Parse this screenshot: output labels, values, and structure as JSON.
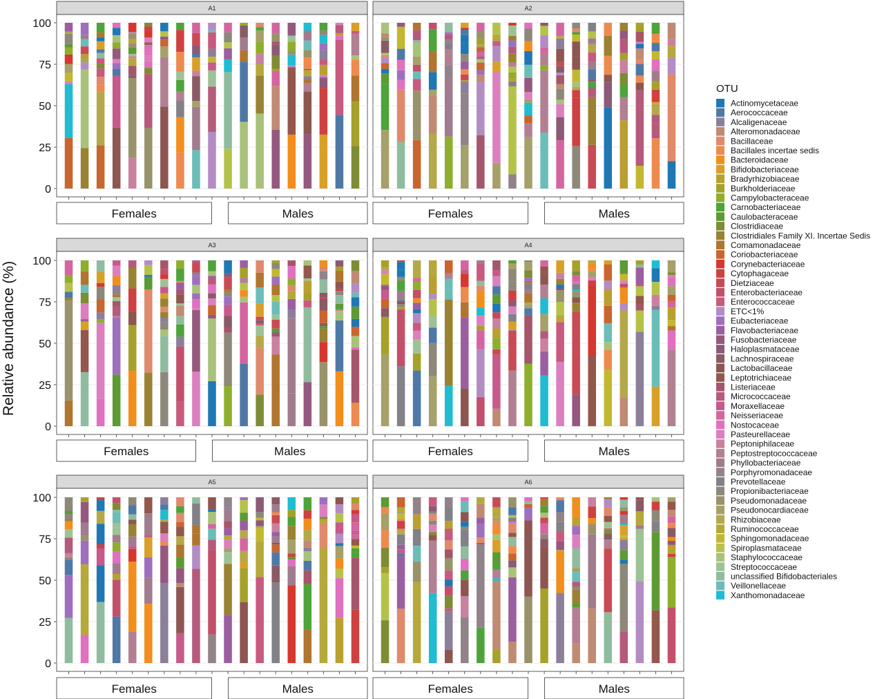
{
  "chart_data": {
    "type": "bar",
    "stacked": true,
    "ylabel": "Relative abundance (%)",
    "ylim": [
      0,
      100
    ],
    "yticks": [
      0,
      25,
      50,
      75,
      100
    ],
    "grid": true,
    "legend": {
      "title": "OTU",
      "placement": "right"
    },
    "group_labels": [
      "Females",
      "Males"
    ],
    "facets": [
      {
        "label": "A1",
        "n_bars": 19,
        "group_split": 10
      },
      {
        "label": "A2",
        "n_bars": 19,
        "group_split": 10
      },
      {
        "label": "A3",
        "n_bars": 19,
        "group_split": 9
      },
      {
        "label": "A4",
        "n_bars": 19,
        "group_split": 10
      },
      {
        "label": "A5",
        "n_bars": 19,
        "group_split": 10
      },
      {
        "label": "A6",
        "n_bars": 19,
        "group_split": 10
      }
    ],
    "otus": [
      {
        "name": "Actinomycetaceae",
        "color": "#1f77b4"
      },
      {
        "name": "Aerococcaceae",
        "color": "#4e79a7"
      },
      {
        "name": "Alcaligenaceae",
        "color": "#8c7f9a"
      },
      {
        "name": "Alteromonadaceae",
        "color": "#c08a73"
      },
      {
        "name": "Bacillaceae",
        "color": "#e0896b"
      },
      {
        "name": "Bacillales incertae sedis",
        "color": "#ee8a4e"
      },
      {
        "name": "Bacteroidaceae",
        "color": "#f28e1c"
      },
      {
        "name": "Bifidobacteriaceae",
        "color": "#d9a027"
      },
      {
        "name": "Bradyrhizobiaceae",
        "color": "#b9a030"
      },
      {
        "name": "Burkholderiaceae",
        "color": "#a6a12a"
      },
      {
        "name": "Campylobacteraceae",
        "color": "#8eae2c"
      },
      {
        "name": "Carnobacteriaceae",
        "color": "#4ea33a"
      },
      {
        "name": "Caulobacteraceae",
        "color": "#5c9a34"
      },
      {
        "name": "Clostridiaceae",
        "color": "#7e8c35"
      },
      {
        "name": "Clostridiales Family XI. Incertae Sedis",
        "color": "#9a8232"
      },
      {
        "name": "Comamonadaceae",
        "color": "#b0752f"
      },
      {
        "name": "Coriobacteriaceae",
        "color": "#c9652e"
      },
      {
        "name": "Corynebacteriaceae",
        "color": "#d6382e"
      },
      {
        "name": "Cytophagaceae",
        "color": "#cf4040"
      },
      {
        "name": "Dietziaceae",
        "color": "#c94a55"
      },
      {
        "name": "Enterobacteriaceae",
        "color": "#c2506a"
      },
      {
        "name": "Enterococcaceae",
        "color": "#c85a7e"
      },
      {
        "name": "ETC<1%",
        "color": "#b38cc4"
      },
      {
        "name": "Eubacteriaceae",
        "color": "#9f6fbf"
      },
      {
        "name": "Flavobacteriaceae",
        "color": "#9b5ea0"
      },
      {
        "name": "Fusobacteriaceae",
        "color": "#95587f"
      },
      {
        "name": "Haloplasmataceae",
        "color": "#8c5a76"
      },
      {
        "name": "Lachnospiraceae",
        "color": "#8a5a66"
      },
      {
        "name": "Lactobacillaceae",
        "color": "#8d5650"
      },
      {
        "name": "Leptotrichiaceae",
        "color": "#93574b"
      },
      {
        "name": "Listeriaceae",
        "color": "#a5566a"
      },
      {
        "name": "Micrococcaceae",
        "color": "#b65a7c"
      },
      {
        "name": "Moraxellaceae",
        "color": "#c7598b"
      },
      {
        "name": "Neisseriaceae",
        "color": "#d565a0"
      },
      {
        "name": "Nostocaceae",
        "color": "#e070c0"
      },
      {
        "name": "Pasteurellaceae",
        "color": "#dc7fbe"
      },
      {
        "name": "Peptoniphilaceae",
        "color": "#c9819f"
      },
      {
        "name": "Peptostreptococcaceae",
        "color": "#b28092"
      },
      {
        "name": "Phyllobacteriaceae",
        "color": "#a07c8e"
      },
      {
        "name": "Porphyromonadaceae",
        "color": "#918389"
      },
      {
        "name": "Prevotellaceae",
        "color": "#838188"
      },
      {
        "name": "Propionibacteriaceae",
        "color": "#8d8879"
      },
      {
        "name": "Pseudomonadaceae",
        "color": "#99936b"
      },
      {
        "name": "Pseudonocardiaceae",
        "color": "#a6a06a"
      },
      {
        "name": "Rhizobiaceae",
        "color": "#b4a84a"
      },
      {
        "name": "Ruminococcaceae",
        "color": "#b6a83a"
      },
      {
        "name": "Sphingomonadaceae",
        "color": "#c2b830"
      },
      {
        "name": "Spiroplasmataceae",
        "color": "#b5c24a"
      },
      {
        "name": "Staphylococcaceae",
        "color": "#a8c27a"
      },
      {
        "name": "Streptococcaceae",
        "color": "#9ec295"
      },
      {
        "name": "unclassified Bifidobacteriales",
        "color": "#8fbc9e"
      },
      {
        "name": "Veillonellaceae",
        "color": "#6bbdb8"
      },
      {
        "name": "Xanthomonadaceae",
        "color": "#1fbcd2"
      }
    ]
  }
}
